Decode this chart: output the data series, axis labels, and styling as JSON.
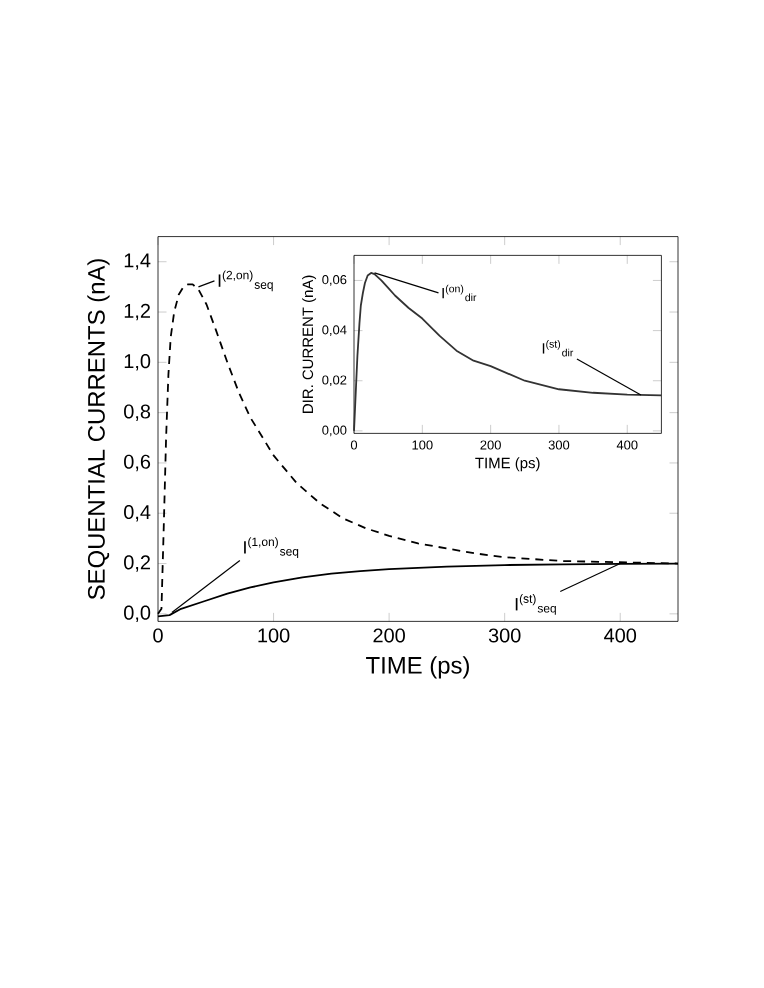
{
  "chart_data": [
    {
      "type": "line",
      "xlabel": "TIME (ps)",
      "ylabel": "SEQUENTIAL CURRENTS (nA)",
      "xlim": [
        0,
        450
      ],
      "xticks": [
        0,
        100,
        200,
        300,
        400
      ],
      "ylim": [
        -0.03,
        1.5
      ],
      "yticks": [
        {
          "value": 0,
          "label": "0,0"
        },
        {
          "value": 0.2,
          "label": "0,2"
        },
        {
          "value": 0.4,
          "label": "0,4"
        },
        {
          "value": 0.6,
          "label": "0,6"
        },
        {
          "value": 0.8,
          "label": "0,8"
        },
        {
          "value": 1.0,
          "label": "1,0"
        },
        {
          "value": 1.2,
          "label": "1,2"
        },
        {
          "value": 1.4,
          "label": "1,4"
        }
      ],
      "series": [
        {
          "color": "#000000",
          "line_style": "dashed",
          "x": [
            0,
            3,
            5,
            7,
            9,
            11,
            14,
            18,
            22,
            26,
            30,
            35,
            42,
            50,
            60,
            70,
            80,
            100,
            120,
            140,
            160,
            180,
            200,
            225,
            250,
            275,
            300,
            350,
            400,
            450
          ],
          "values": [
            0,
            0.02,
            0.35,
            0.7,
            0.95,
            1.1,
            1.2,
            1.27,
            1.3,
            1.31,
            1.31,
            1.29,
            1.23,
            1.13,
            1.0,
            0.88,
            0.78,
            0.63,
            0.52,
            0.44,
            0.38,
            0.34,
            0.31,
            0.28,
            0.26,
            0.24,
            0.225,
            0.21,
            0.205,
            0.2
          ]
        },
        {
          "color": "#000000",
          "line_style": "solid",
          "x": [
            0,
            10,
            20,
            40,
            60,
            80,
            100,
            125,
            150,
            175,
            200,
            250,
            300,
            350,
            400,
            450
          ],
          "values": [
            -0.01,
            -0.005,
            0.02,
            0.05,
            0.08,
            0.105,
            0.125,
            0.145,
            0.16,
            0.17,
            0.178,
            0.188,
            0.194,
            0.197,
            0.199,
            0.2
          ]
        }
      ],
      "annotations": [
        {
          "text": "I$^{(2,on)}$$_{seq}$",
          "x": 35,
          "y": 1.3
        },
        {
          "text": "I$^{(1,on)}$$_{seq}$",
          "x": 12,
          "y": 0.005
        },
        {
          "text": "I$^{(st)}$$_{seq}$",
          "x": 400,
          "y": 0.2
        }
      ]
    },
    {
      "type": "line",
      "xlabel": "TIME (ps)",
      "ylabel": "DIR. CURRENT (nA)",
      "xlim": [
        0,
        450
      ],
      "xticks": [
        0,
        100,
        200,
        300,
        400
      ],
      "ylim": [
        -0.001,
        0.07
      ],
      "yticks": [
        {
          "value": 0,
          "label": "0,00"
        },
        {
          "value": 0.02,
          "label": "0,02"
        },
        {
          "value": 0.04,
          "label": "0,04"
        },
        {
          "value": 0.06,
          "label": "0,06"
        }
      ],
      "series": [
        {
          "color": "#333333",
          "line_style": "solid",
          "x": [
            0,
            3,
            5,
            8,
            10,
            13,
            16,
            20,
            25,
            30,
            40,
            50,
            60,
            80,
            100,
            125,
            150,
            175,
            200,
            250,
            300,
            350,
            400,
            450
          ],
          "values": [
            0,
            0.018,
            0.03,
            0.043,
            0.05,
            0.055,
            0.059,
            0.062,
            0.063,
            0.0625,
            0.06,
            0.057,
            0.054,
            0.049,
            0.0448,
            0.038,
            0.032,
            0.028,
            0.0258,
            0.02,
            0.0166,
            0.0152,
            0.0145,
            0.0142
          ]
        }
      ],
      "annotations": [
        {
          "text": "I$^{(on)}$$_{dir}$",
          "x": 30,
          "y": 0.063
        },
        {
          "text": "I$^{(st)}$$_{dir}$",
          "x": 420,
          "y": 0.0143
        }
      ]
    }
  ]
}
